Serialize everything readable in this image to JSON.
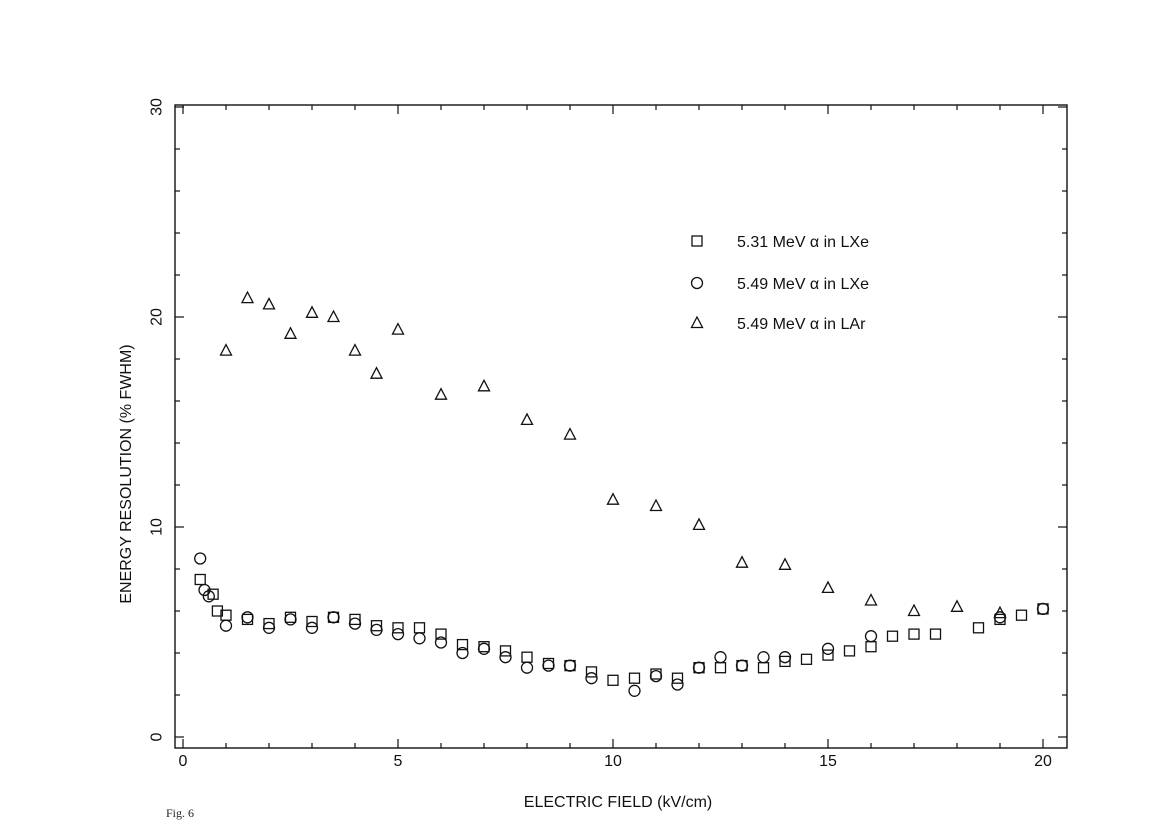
{
  "figure_label": "Fig. 6",
  "chart_data": {
    "type": "scatter",
    "title": "",
    "xlabel": "ELECTRIC FIELD (kV/cm)",
    "ylabel": "ENERGY RESOLUTION (% FWHM)",
    "xlim": [
      0,
      20
    ],
    "ylim": [
      0,
      30
    ],
    "x_ticks": [
      0,
      5,
      10,
      15,
      20
    ],
    "y_ticks": [
      0,
      10,
      20,
      30
    ],
    "grid": false,
    "legend_position": "top-right",
    "series": [
      {
        "name": "5.31 MeV α in LXe",
        "marker": "square",
        "x": [
          0.4,
          0.7,
          0.8,
          1.0,
          1.5,
          2.0,
          2.5,
          3.0,
          3.5,
          4.0,
          4.5,
          5.0,
          5.5,
          6.0,
          6.5,
          7.0,
          7.5,
          8.0,
          8.5,
          9.0,
          9.5,
          10.0,
          10.5,
          11.0,
          11.5,
          12.0,
          12.5,
          13.0,
          13.5,
          14.0,
          14.5,
          15.0,
          15.5,
          16.0,
          16.5,
          17.0,
          17.5,
          18.5,
          19.0,
          19.5,
          20.0
        ],
        "y": [
          7.5,
          6.8,
          6.0,
          5.8,
          5.6,
          5.4,
          5.7,
          5.5,
          5.7,
          5.6,
          5.3,
          5.2,
          5.2,
          4.9,
          4.4,
          4.3,
          4.1,
          3.8,
          3.5,
          3.4,
          3.1,
          2.7,
          2.8,
          3.0,
          2.8,
          3.3,
          3.3,
          3.4,
          3.3,
          3.6,
          3.7,
          3.9,
          4.1,
          4.3,
          4.8,
          4.9,
          4.9,
          5.2,
          5.6,
          5.8,
          6.1
        ]
      },
      {
        "name": "5.49 MeV α in LXe",
        "marker": "circle",
        "x": [
          0.4,
          0.5,
          0.6,
          1.0,
          1.5,
          2.0,
          2.5,
          3.0,
          3.5,
          4.0,
          4.5,
          5.0,
          5.5,
          6.0,
          6.5,
          7.0,
          7.5,
          8.0,
          8.5,
          9.0,
          9.5,
          10.5,
          11.0,
          11.5,
          12.0,
          12.5,
          13.0,
          13.5,
          14.0,
          15.0,
          16.0,
          19.0,
          20.0
        ],
        "y": [
          8.5,
          7.0,
          6.7,
          5.3,
          5.7,
          5.2,
          5.6,
          5.2,
          5.7,
          5.4,
          5.1,
          4.9,
          4.7,
          4.5,
          4.0,
          4.2,
          3.8,
          3.3,
          3.4,
          3.4,
          2.8,
          2.2,
          2.9,
          2.5,
          3.3,
          3.8,
          3.4,
          3.8,
          3.8,
          4.2,
          4.8,
          5.7,
          6.1
        ]
      },
      {
        "name": "5.49 MeV α in LAr",
        "marker": "triangle",
        "x": [
          1.0,
          1.5,
          2.0,
          2.5,
          3.0,
          3.5,
          4.0,
          4.5,
          5.0,
          6.0,
          7.0,
          8.0,
          9.0,
          10.0,
          11.0,
          12.0,
          13.0,
          14.0,
          15.0,
          16.0,
          17.0,
          18.0,
          19.0
        ],
        "y": [
          18.4,
          20.9,
          20.6,
          19.2,
          20.2,
          20.0,
          18.4,
          17.3,
          19.4,
          16.3,
          16.7,
          15.1,
          14.4,
          11.3,
          11.0,
          10.1,
          8.3,
          8.2,
          7.1,
          6.5,
          6.0,
          6.2,
          5.9
        ]
      }
    ]
  }
}
